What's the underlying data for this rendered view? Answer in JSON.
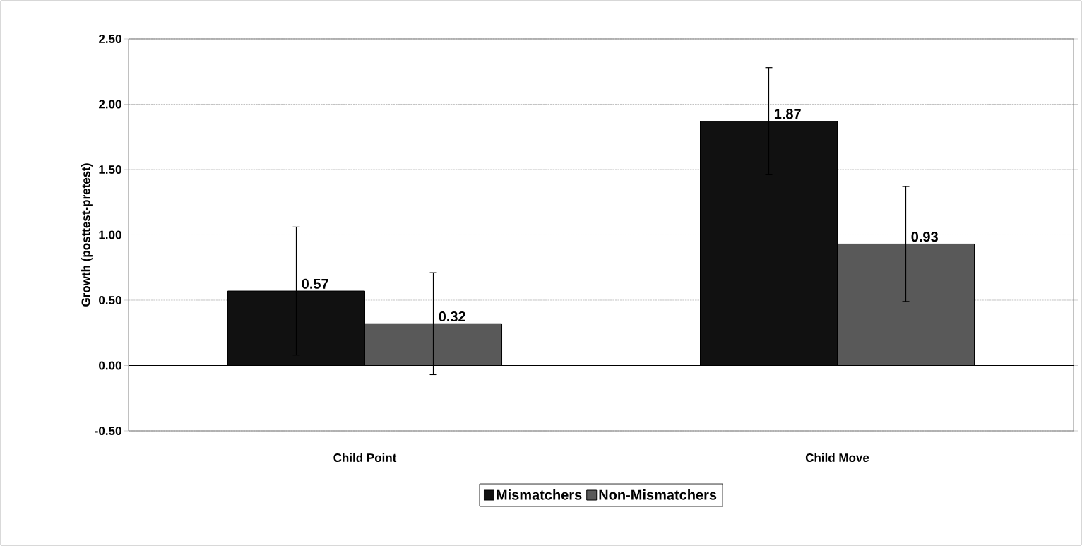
{
  "chart_data": {
    "type": "bar",
    "ylabel": "Growth (posttest-pretest)",
    "categories": [
      "Child Point",
      "Child Move"
    ],
    "series": [
      {
        "name": "Mismatchers",
        "color": "#111111",
        "values": [
          0.57,
          1.87
        ],
        "errors": [
          0.49,
          0.41
        ],
        "value_labels": [
          "0.57",
          "1.87"
        ]
      },
      {
        "name": "Non-Mismatchers",
        "color": "#595959",
        "values": [
          0.32,
          0.93
        ],
        "errors": [
          0.39,
          0.44
        ],
        "value_labels": [
          "0.32",
          "0.93"
        ]
      }
    ],
    "ylim": [
      -0.5,
      2.5
    ],
    "yticks": [
      {
        "value": -0.5,
        "label": "-0.50"
      },
      {
        "value": 0,
        "label": "0.00"
      },
      {
        "value": 0.5,
        "label": "0.50"
      },
      {
        "value": 1,
        "label": "1.00"
      },
      {
        "value": 1.5,
        "label": "1.50"
      },
      {
        "value": 2,
        "label": "2.00"
      },
      {
        "value": 2.5,
        "label": "2.50"
      }
    ],
    "grid": "y",
    "legend": "bottom"
  }
}
